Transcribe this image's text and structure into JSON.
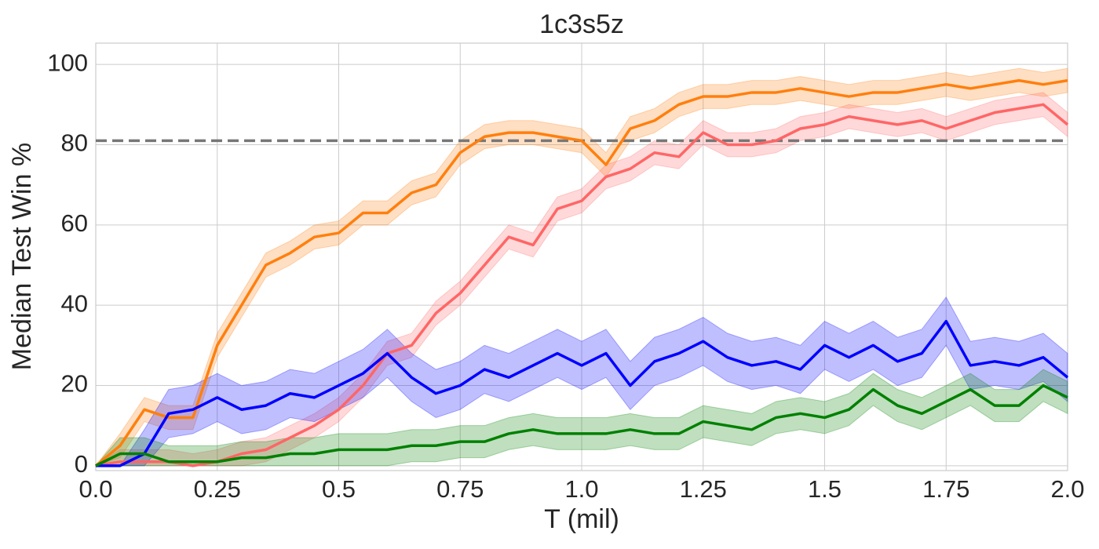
{
  "chart_data": {
    "type": "line",
    "title": "1c3s5z",
    "x_label": "T (mil)",
    "y_label": "Median Test Win %",
    "xlim": [
      0,
      2
    ],
    "ylim": [
      -1.2,
      105.3
    ],
    "xticks": [
      {
        "value": 0,
        "label": "0.0"
      },
      0.25,
      0.5,
      0.75,
      {
        "value": 1,
        "label": "1.0"
      },
      1.25,
      1.5,
      1.75,
      {
        "value": 2,
        "label": "2.0"
      }
    ],
    "yticks": [
      0,
      20,
      40,
      60,
      80,
      100
    ],
    "grid": true,
    "hline": {
      "value": 81,
      "color": "#777777"
    },
    "x": [
      0,
      0.05,
      0.1,
      0.15,
      0.2,
      0.25,
      0.3,
      0.35,
      0.4,
      0.45,
      0.5,
      0.55,
      0.6,
      0.65,
      0.7,
      0.75,
      0.8,
      0.85,
      0.9,
      0.95,
      1,
      1.05,
      1.1,
      1.15,
      1.2,
      1.25,
      1.3,
      1.35,
      1.4,
      1.45,
      1.5,
      1.55,
      1.6,
      1.65,
      1.7,
      1.75,
      1.8,
      1.85,
      1.9,
      1.95,
      2
    ],
    "series": [
      {
        "color": "#ff7f0e",
        "values": [
          0,
          5,
          14,
          12,
          12,
          30,
          40,
          50,
          53,
          57,
          58,
          63,
          63,
          68,
          70,
          78,
          82,
          83,
          83,
          82,
          81,
          75,
          84,
          86,
          90,
          92,
          92,
          93,
          93,
          94,
          93,
          92,
          93,
          93,
          94,
          95,
          94,
          95,
          96,
          95,
          96
        ],
        "lower": [
          0,
          2,
          11,
          9,
          9,
          27,
          37,
          47,
          50,
          54,
          55,
          60,
          60,
          65,
          67,
          75,
          79,
          80,
          80,
          79,
          78,
          72,
          81,
          83,
          87,
          89,
          89,
          90,
          90,
          91,
          90,
          89,
          90,
          90,
          91,
          92,
          91,
          92,
          93,
          92,
          93
        ],
        "upper": [
          0,
          8,
          17,
          15,
          15,
          33,
          43,
          53,
          56,
          60,
          61,
          66,
          66,
          71,
          73,
          81,
          85,
          86,
          86,
          85,
          84,
          78,
          87,
          89,
          93,
          95,
          95,
          96,
          96,
          97,
          96,
          95,
          96,
          96,
          97,
          98,
          97,
          98,
          99,
          98,
          99
        ]
      },
      {
        "color": "#ff6666",
        "values": [
          0,
          1,
          1,
          1,
          0,
          1,
          3,
          4,
          7,
          10,
          14,
          20,
          28,
          30,
          38,
          43,
          50,
          57,
          55,
          64,
          66,
          72,
          74,
          78,
          77,
          83,
          80,
          80,
          81,
          84,
          85,
          87,
          86,
          85,
          86,
          84,
          86,
          88,
          89,
          90,
          85
        ],
        "lower": [
          0,
          0,
          0,
          0,
          0,
          0,
          0,
          1,
          4,
          7,
          11,
          17,
          25,
          27,
          35,
          40,
          47,
          54,
          52,
          61,
          63,
          69,
          71,
          75,
          74,
          80,
          77,
          77,
          78,
          81,
          82,
          84,
          83,
          82,
          83,
          81,
          83,
          85,
          86,
          87,
          82
        ],
        "upper": [
          0,
          4,
          4,
          4,
          3,
          4,
          6,
          7,
          10,
          13,
          17,
          23,
          31,
          33,
          41,
          46,
          53,
          60,
          58,
          67,
          69,
          75,
          77,
          81,
          80,
          86,
          83,
          83,
          84,
          87,
          88,
          90,
          89,
          88,
          89,
          87,
          89,
          91,
          92,
          93,
          88
        ]
      },
      {
        "color": "#0000ff",
        "values": [
          0,
          0,
          3,
          13,
          14,
          17,
          14,
          15,
          18,
          17,
          20,
          23,
          28,
          22,
          18,
          20,
          24,
          22,
          25,
          28,
          25,
          28,
          20,
          26,
          28,
          31,
          27,
          25,
          26,
          24,
          30,
          27,
          30,
          26,
          28,
          36,
          25,
          26,
          25,
          27,
          22
        ],
        "lower": [
          0,
          0,
          0,
          7,
          8,
          11,
          8,
          9,
          12,
          11,
          14,
          17,
          22,
          16,
          12,
          14,
          18,
          16,
          19,
          22,
          19,
          22,
          14,
          20,
          22,
          25,
          21,
          19,
          20,
          18,
          24,
          21,
          24,
          20,
          22,
          30,
          19,
          20,
          19,
          21,
          16
        ],
        "upper": [
          0,
          0,
          9,
          19,
          20,
          23,
          20,
          21,
          24,
          23,
          26,
          29,
          34,
          28,
          24,
          26,
          30,
          28,
          31,
          34,
          31,
          34,
          26,
          32,
          34,
          37,
          33,
          31,
          32,
          30,
          36,
          33,
          36,
          32,
          34,
          42,
          31,
          32,
          31,
          33,
          28
        ]
      },
      {
        "color": "#008000",
        "values": [
          0,
          3,
          3,
          1,
          1,
          1,
          2,
          2,
          3,
          3,
          4,
          4,
          4,
          5,
          5,
          6,
          6,
          8,
          9,
          8,
          8,
          8,
          9,
          8,
          8,
          11,
          10,
          9,
          12,
          13,
          12,
          14,
          19,
          15,
          13,
          16,
          19,
          15,
          15,
          20,
          17
        ],
        "lower": [
          0,
          0,
          0,
          0,
          0,
          0,
          0,
          0,
          0,
          0,
          0,
          0,
          0,
          1,
          1,
          2,
          2,
          4,
          5,
          4,
          4,
          4,
          5,
          4,
          4,
          7,
          6,
          5,
          8,
          9,
          8,
          10,
          15,
          11,
          9,
          12,
          15,
          11,
          11,
          16,
          13
        ],
        "upper": [
          0,
          7,
          7,
          5,
          5,
          5,
          6,
          6,
          7,
          7,
          8,
          8,
          8,
          9,
          9,
          10,
          10,
          12,
          13,
          12,
          12,
          12,
          13,
          12,
          12,
          15,
          14,
          13,
          16,
          17,
          16,
          18,
          23,
          19,
          17,
          20,
          23,
          19,
          19,
          24,
          21
        ]
      }
    ]
  }
}
